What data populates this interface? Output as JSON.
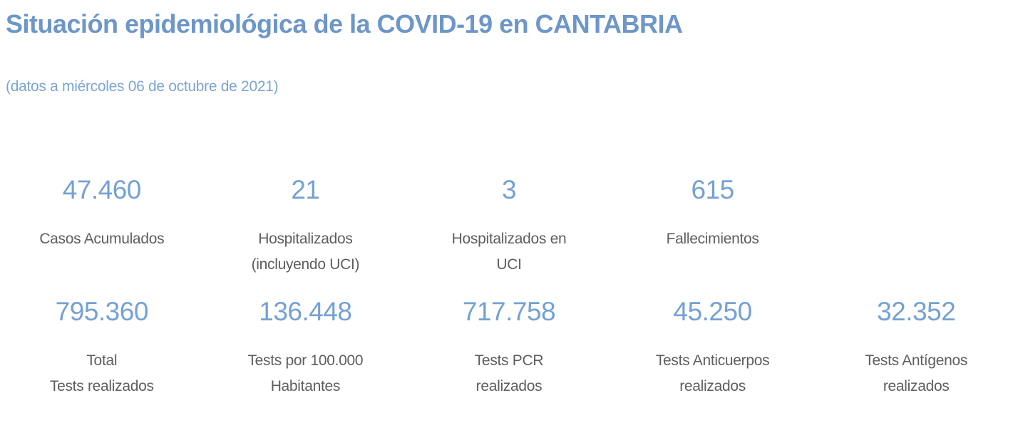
{
  "header": {
    "title": "Situación epidemiológica de la COVID-19 en CANTABRIA",
    "subtitle": "(datos a miércoles 06 de octubre de 2021)"
  },
  "colors": {
    "title": "#6d96c9",
    "subtitle": "#7ba4d6",
    "number": "#74a1d3",
    "label": "#5e5e5e",
    "background": "#ffffff"
  },
  "kpi_row_primary": [
    {
      "value": "47.460",
      "label_line1": "Casos Acumulados",
      "label_line2": ""
    },
    {
      "value": "21",
      "label_line1": "Hospitalizados",
      "label_line2": "(incluyendo UCI)"
    },
    {
      "value": "3",
      "label_line1": "Hospitalizados en",
      "label_line2": "UCI"
    },
    {
      "value": "615",
      "label_line1": "Fallecimientos",
      "label_line2": ""
    }
  ],
  "kpi_row_tests": [
    {
      "value": "795.360",
      "label_line1": "Total",
      "label_line2": "Tests realizados"
    },
    {
      "value": "136.448",
      "label_line1": "Tests por 100.000",
      "label_line2": "Habitantes"
    },
    {
      "value": "717.758",
      "label_line1": "Tests PCR",
      "label_line2": "realizados"
    },
    {
      "value": "45.250",
      "label_line1": "Tests Anticuerpos",
      "label_line2": "realizados"
    },
    {
      "value": "32.352",
      "label_line1": "Tests Antígenos",
      "label_line2": "realizados"
    }
  ],
  "chart_data": {
    "type": "table",
    "title": "Situación epidemiológica de la COVID-19 en CANTABRIA",
    "subtitle": "(datos a miércoles 06 de octubre de 2021)",
    "kpis": [
      {
        "label": "Casos Acumulados",
        "value": 47460
      },
      {
        "label": "Hospitalizados (incluyendo UCI)",
        "value": 21
      },
      {
        "label": "Hospitalizados en UCI",
        "value": 3
      },
      {
        "label": "Fallecimientos",
        "value": 615
      },
      {
        "label": "Total Tests realizados",
        "value": 795360
      },
      {
        "label": "Tests por 100.000 Habitantes",
        "value": 136448
      },
      {
        "label": "Tests PCR realizados",
        "value": 717758
      },
      {
        "label": "Tests Anticuerpos realizados",
        "value": 45250
      },
      {
        "label": "Tests Antígenos realizados",
        "value": 32352
      }
    ]
  }
}
